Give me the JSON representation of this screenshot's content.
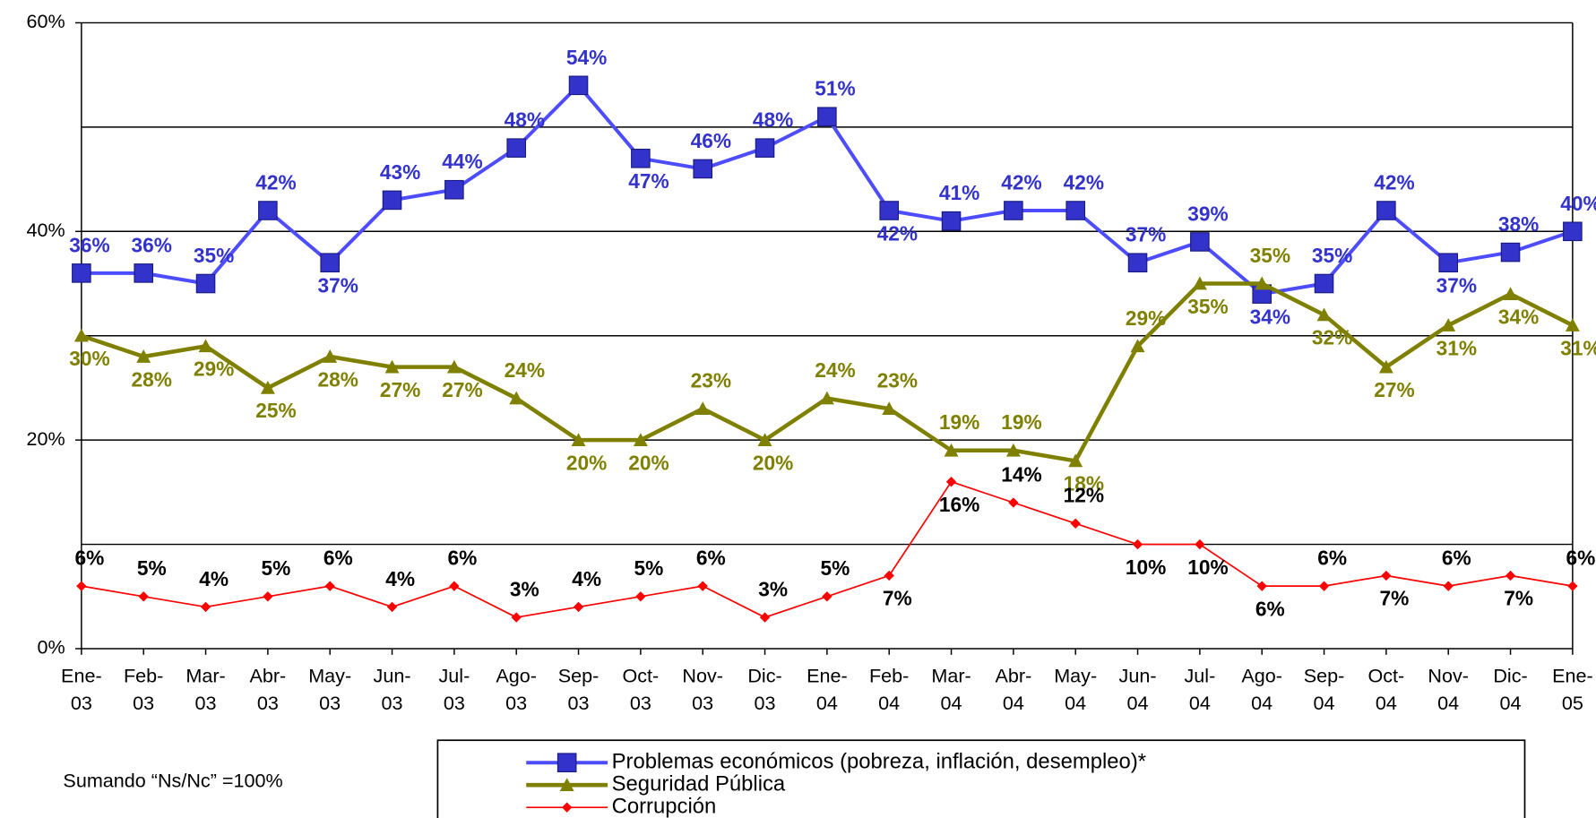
{
  "chart_data": {
    "type": "line",
    "categories": [
      "Ene-\n03",
      "Feb-\n03",
      "Mar-\n03",
      "Abr-\n03",
      "May-\n03",
      "Jun-\n03",
      "Jul-\n03",
      "Ago-\n03",
      "Sep-\n03",
      "Oct-\n03",
      "Nov-\n03",
      "Dic-\n03",
      "Ene-\n04",
      "Feb-\n04",
      "Mar-\n04",
      "Abr-\n04",
      "May-\n04",
      "Jun-\n04",
      "Jul-\n04",
      "Ago-\n04",
      "Sep-\n04",
      "Oct-\n04",
      "Nov-\n04",
      "Dic-\n04",
      "Ene-\n05"
    ],
    "series": [
      {
        "name": "Problemas económicos (pobreza, inflación, desempleo)*",
        "color": "#3333cc",
        "marker": "square",
        "values": [
          36,
          36,
          35,
          42,
          37,
          43,
          44,
          48,
          54,
          47,
          46,
          48,
          51,
          42,
          41,
          42,
          42,
          37,
          39,
          34,
          35,
          42,
          37,
          38,
          40
        ],
        "value_labels": [
          "36%",
          "36%",
          "35%",
          "42%",
          "37%",
          "43%",
          "44%",
          "48%",
          "54%",
          "47%",
          "46%",
          "48%",
          "51%",
          "42%",
          "41%",
          "42%",
          "42%",
          "37%",
          "39%",
          "34%",
          "35%",
          "42%",
          "37%",
          "38%",
          "40%"
        ]
      },
      {
        "name": "Seguridad Pública",
        "color": "#808000",
        "marker": "triangle",
        "values": [
          30,
          28,
          29,
          25,
          28,
          27,
          27,
          24,
          20,
          20,
          23,
          20,
          24,
          23,
          19,
          19,
          18,
          29,
          35,
          35,
          32,
          27,
          31,
          34,
          31
        ],
        "value_labels": [
          "30%",
          "28%",
          "29%",
          "25%",
          "28%",
          "27%",
          "27%",
          "24%",
          "20%",
          "20%",
          "23%",
          "20%",
          "24%",
          "23%",
          "19%",
          "19%",
          "18%",
          "29%",
          "35%",
          "35%",
          "32%",
          "27%",
          "31%",
          "34%",
          "31%"
        ]
      },
      {
        "name": "Corrupción",
        "color": "#ff0000",
        "marker": "diamond",
        "values": [
          6,
          5,
          4,
          5,
          6,
          4,
          6,
          3,
          4,
          5,
          6,
          3,
          5,
          7,
          16,
          14,
          12,
          10,
          10,
          6,
          6,
          7,
          6,
          7,
          6
        ],
        "value_labels": [
          "6%",
          "5%",
          "4%",
          "5%",
          "6%",
          "4%",
          "6%",
          "3%",
          "4%",
          "5%",
          "6%",
          "3%",
          "5%",
          "7%",
          "16%",
          "14%",
          "12%",
          "10%",
          "10%",
          "6%",
          "6%",
          "7%",
          "6%",
          "7%",
          "6%"
        ]
      }
    ],
    "ylim": [
      0,
      60
    ],
    "yticks": [
      {
        "value": 0,
        "label": "0%"
      },
      {
        "value": 20,
        "label": "20%"
      },
      {
        "value": 40,
        "label": "40%"
      },
      {
        "value": 60,
        "label": "60%"
      }
    ],
    "grid_lines": [
      10,
      20,
      30,
      40,
      50
    ],
    "note": "Sumando “Ns/Nc” =100%"
  }
}
